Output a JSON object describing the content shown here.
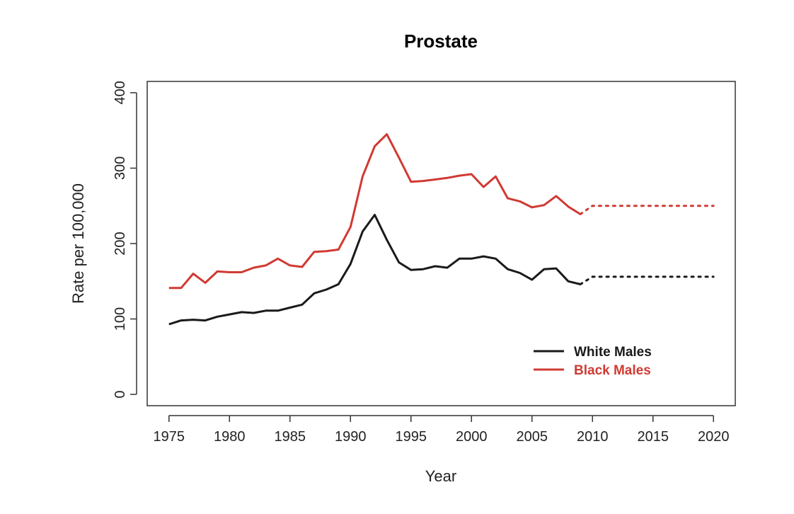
{
  "chart_data": {
    "type": "line",
    "title": "Prostate",
    "xlabel": "Year",
    "ylabel": "Rate per 100,000",
    "xlim": [
      1973.2,
      2021.8
    ],
    "ylim": [
      -15,
      415
    ],
    "xticks": [
      1975,
      1980,
      1985,
      1990,
      1995,
      2000,
      2005,
      2010,
      2015,
      2020
    ],
    "yticks": [
      0,
      100,
      200,
      300,
      400
    ],
    "grid": false,
    "legend_position": "bottom-right",
    "series": [
      {
        "name": "White Males",
        "color": "#1a1a1a",
        "x": [
          1975,
          1976,
          1977,
          1978,
          1979,
          1980,
          1981,
          1982,
          1983,
          1984,
          1985,
          1986,
          1987,
          1988,
          1989,
          1990,
          1991,
          1992,
          1993,
          1994,
          1995,
          1996,
          1997,
          1998,
          1999,
          2000,
          2001,
          2002,
          2003,
          2004,
          2005,
          2006,
          2007,
          2008,
          2009
        ],
        "values": [
          93,
          98,
          99,
          98,
          103,
          106,
          109,
          108,
          111,
          111,
          115,
          119,
          134,
          139,
          146,
          173,
          216,
          238,
          205,
          175,
          165,
          166,
          170,
          168,
          180,
          180,
          183,
          180,
          166,
          161,
          152,
          166,
          167,
          150,
          146
        ],
        "projection": {
          "x": [
            2009,
            2010,
            2020
          ],
          "values": [
            146,
            156,
            156
          ]
        }
      },
      {
        "name": "Black Males",
        "color": "#d03a32",
        "x": [
          1975,
          1976,
          1977,
          1978,
          1979,
          1980,
          1981,
          1982,
          1983,
          1984,
          1985,
          1986,
          1987,
          1988,
          1989,
          1990,
          1991,
          1992,
          1993,
          1994,
          1995,
          1996,
          1997,
          1998,
          1999,
          2000,
          2001,
          2002,
          2003,
          2004,
          2005,
          2006,
          2007,
          2008,
          2009
        ],
        "values": [
          141,
          141,
          160,
          148,
          163,
          162,
          162,
          168,
          171,
          180,
          171,
          169,
          189,
          190,
          192,
          222,
          289,
          329,
          345,
          314,
          282,
          283,
          285,
          287,
          290,
          292,
          275,
          289,
          260,
          256,
          248,
          251,
          263,
          249,
          239
        ],
        "projection": {
          "x": [
            2009,
            2010,
            2020
          ],
          "values": [
            239,
            250,
            250
          ]
        }
      }
    ]
  }
}
